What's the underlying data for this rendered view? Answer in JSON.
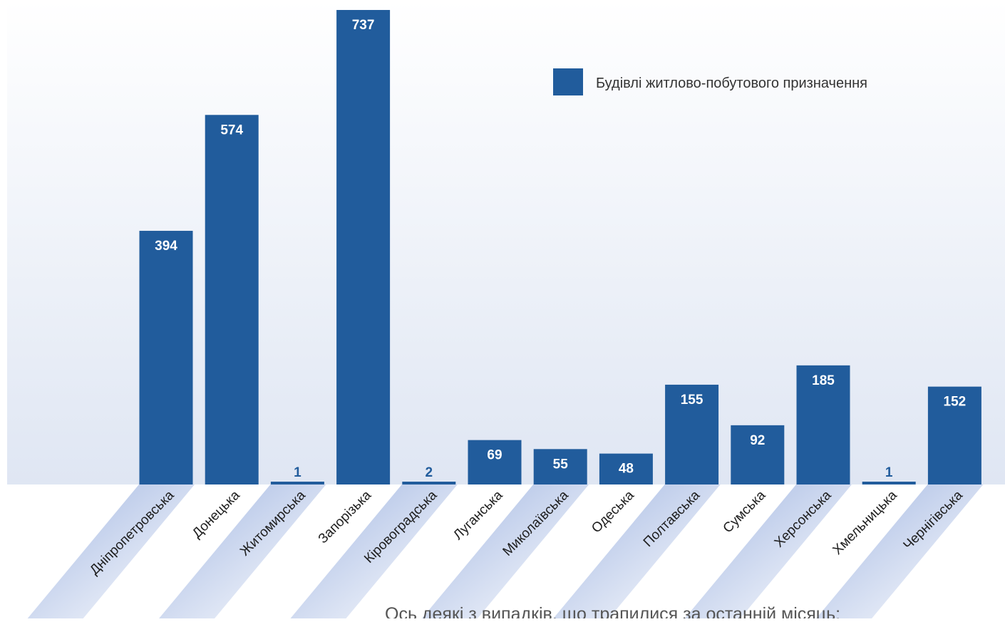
{
  "chart_data": {
    "type": "bar",
    "categories": [
      "Дніпропетровська",
      "Донецька",
      "Житомирська",
      "Запорізька",
      "Кіровоградська",
      "Луганська",
      "Миколаївська",
      "Одеська",
      "Полтавська",
      "Сумська",
      "Херсонська",
      "Хмельницька",
      "Чернігівська"
    ],
    "series": [
      {
        "name": "Будівлі житлово-побутового призначення",
        "values": [
          394,
          574,
          1,
          737,
          2,
          69,
          55,
          48,
          155,
          92,
          185,
          1,
          152
        ]
      }
    ],
    "ylim": [
      0,
      737
    ],
    "grid": false,
    "legend_position": "top-right",
    "data_labels": true,
    "colors": {
      "bar": "#215c9c",
      "label_inside": "#ffffff",
      "label_outside": "#215c9c",
      "background_gradient_top": "#ffffff",
      "background_gradient_bottom": "#dfe6f3",
      "label_band": "#97aede"
    }
  },
  "caption": "Ось деякі з випадків, що трапилися за останній місяць:"
}
